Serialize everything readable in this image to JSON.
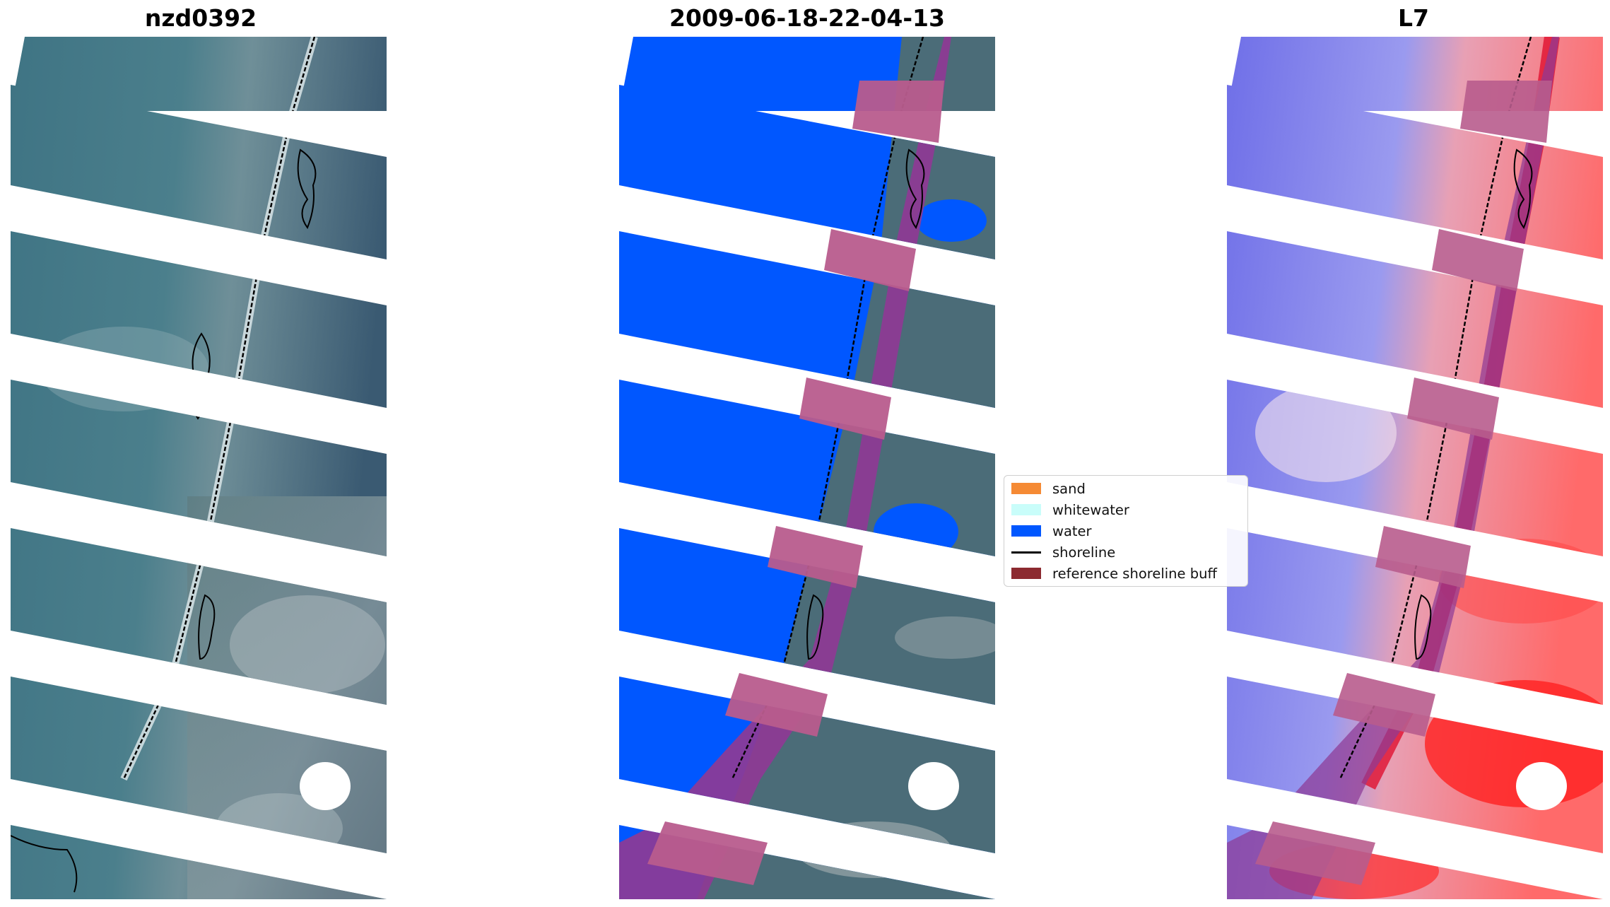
{
  "panels": [
    {
      "id": "rgb",
      "title": "nzd0392"
    },
    {
      "id": "classified",
      "title": "2009-06-18-22-04-13"
    },
    {
      "id": "index",
      "title": "L7"
    }
  ],
  "legend": {
    "items": [
      {
        "label": "sand",
        "type": "patch",
        "color": "#f58a34"
      },
      {
        "label": "whitewater",
        "type": "patch",
        "color": "#c9fdfa"
      },
      {
        "label": "water",
        "type": "patch",
        "color": "#0057ff"
      },
      {
        "label": "shoreline",
        "type": "line",
        "color": "#000000"
      },
      {
        "label": "reference shoreline buff",
        "type": "patch",
        "color": "#8c2a30"
      }
    ]
  },
  "colors": {
    "water_blue": "#0057ff",
    "buffer_purple": "#8e3a95",
    "buffer_pink": "#b85c8d",
    "shoreline": "#000000",
    "index_blue": "#6b6be8",
    "index_red": "#ff3030"
  }
}
